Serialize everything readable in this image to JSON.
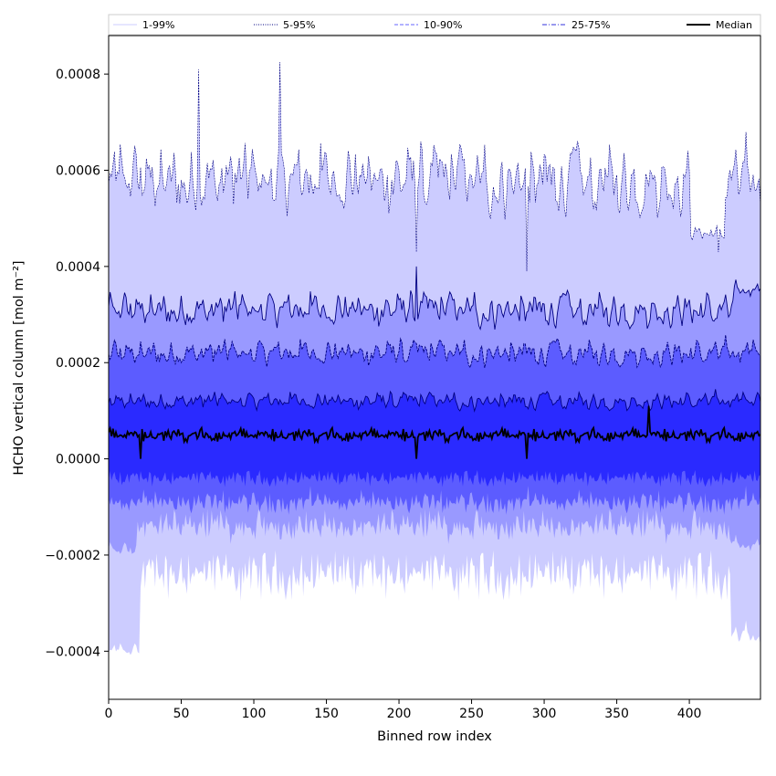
{
  "chart_data": {
    "type": "area",
    "xlabel": "Binned row index",
    "ylabel": "HCHO vertical column [mol m⁻²]",
    "xlim": [
      0,
      449
    ],
    "ylim": [
      -0.0005,
      0.00088
    ],
    "x_ticks": [
      0,
      50,
      100,
      150,
      200,
      250,
      300,
      350,
      400
    ],
    "x_tick_labels": [
      "0",
      "50",
      "100",
      "150",
      "200",
      "250",
      "300",
      "350",
      "400"
    ],
    "y_ticks": [
      -0.0004,
      -0.0002,
      0.0,
      0.0002,
      0.0004,
      0.0006,
      0.0008
    ],
    "y_tick_labels": [
      "−0.0004",
      "−0.0002",
      "0.0000",
      "0.0002",
      "0.0004",
      "0.0006",
      "0.0008"
    ],
    "grid": false,
    "legend_position": "top",
    "legend": [
      {
        "label": "1-99%",
        "color": "#ccccff",
        "dash": "solid"
      },
      {
        "label": "5-95%",
        "color": "#000080",
        "dash": "dotted"
      },
      {
        "label": "10-90%",
        "color": "#6666ff",
        "dash": "dashed"
      },
      {
        "label": "25-75%",
        "color": "#3333dd",
        "dash": "dashdot"
      },
      {
        "label": "Median",
        "color": "#000000",
        "dash": "solid"
      }
    ],
    "x_count": 450,
    "bands": [
      {
        "name": "1-99%",
        "fill": "#ccccff",
        "upper": 0.00058,
        "lower": -0.00024,
        "upper_noise": 4e-05,
        "lower_noise": 3e-05
      },
      {
        "name": "5-95%",
        "fill": "#9999ff",
        "upper": 0.00031,
        "lower": -0.00014,
        "upper_noise": 2e-05,
        "lower_noise": 2e-05
      },
      {
        "name": "10-90%",
        "fill": "#5c5cff",
        "upper": 0.00022,
        "lower": -9e-05,
        "upper_noise": 1.5e-05,
        "lower_noise": 1.5e-05
      },
      {
        "name": "25-75%",
        "fill": "#2a2aff",
        "upper": 0.00012,
        "lower": -4e-05,
        "upper_noise": 1e-05,
        "lower_noise": 1e-05
      }
    ],
    "median": {
      "name": "Median",
      "level": 5e-05,
      "noise": 1.2e-05,
      "color": "#000000"
    },
    "edge_lower_1_99": -0.0004,
    "spikes": [
      {
        "x": 62,
        "value": 0.00081
      },
      {
        "x": 118,
        "value": 0.000825
      },
      {
        "x": 212,
        "value": 0.00043
      },
      {
        "x": 288,
        "value": 0.00039
      },
      {
        "x": 420,
        "value": 0.00043
      }
    ]
  }
}
